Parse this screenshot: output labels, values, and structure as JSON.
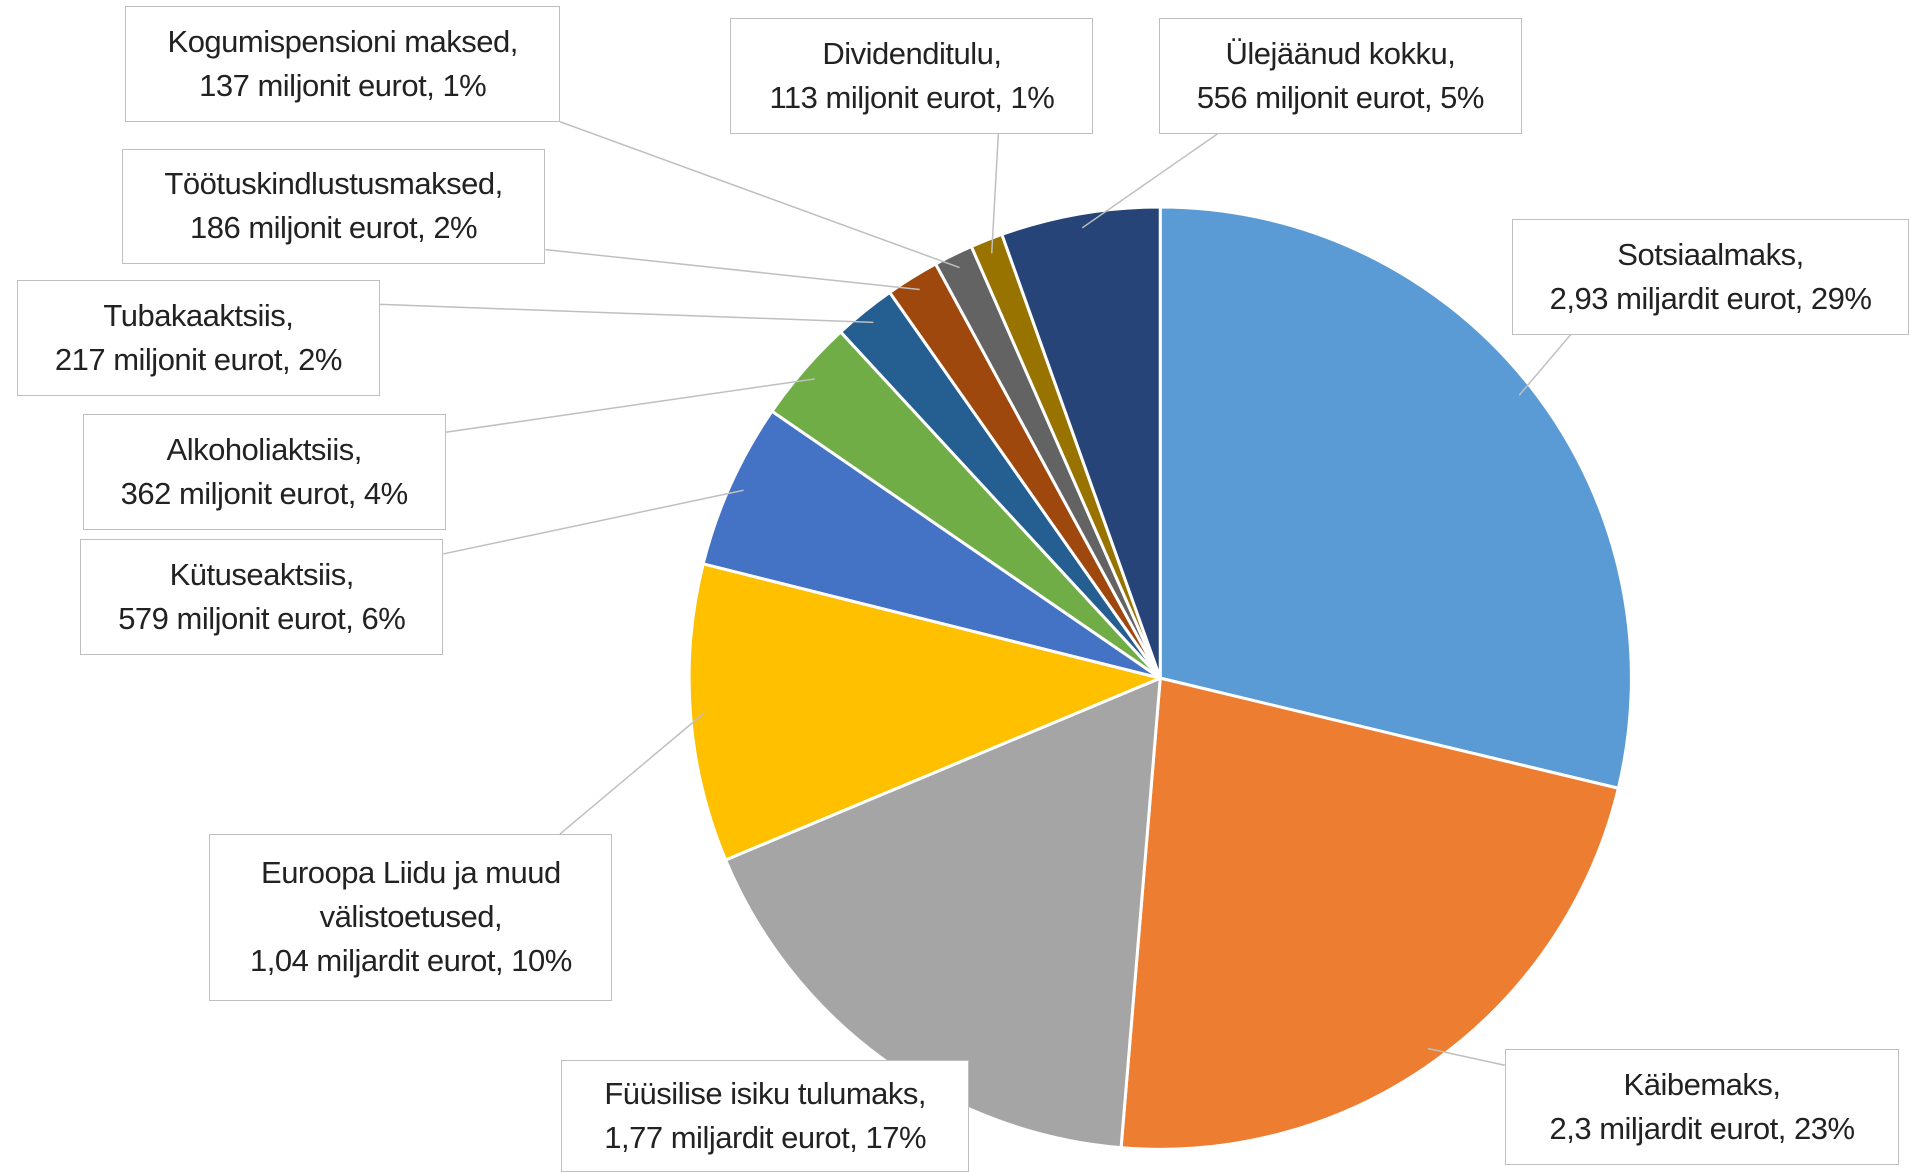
{
  "chart_data": {
    "type": "pie",
    "categories": [
      "Sotsiaalmaks,",
      "Käibemaks,",
      "Füüsilise isiku tulumaks,",
      "Euroopa Liidu ja muud välistoetused,",
      "Kütuseaktsiis,",
      "Alkoholiaktsiis,",
      "Tubakaaktsiis,",
      "Töötuskindlustusmaksed,",
      "Kogumispensioni maksed,",
      "Dividenditulu,",
      "Ülejäänud kokku,"
    ],
    "values": [
      2930,
      2300,
      1770,
      1040,
      579,
      362,
      217,
      186,
      137,
      113,
      556
    ],
    "value_labels": [
      "2,93 miljardit eurot, 29%",
      "2,3 miljardit eurot, 23%",
      "1,77 miljardit eurot, 17%",
      "1,04 miljardit eurot, 10%",
      "579 miljonit eurot, 6%",
      "362 miljonit eurot, 4%",
      "217 miljonit eurot, 2%",
      "186 miljonit eurot, 2%",
      "137 miljonit eurot, 1%",
      "113 miljonit eurot, 1%",
      "556 miljonit eurot, 5%"
    ],
    "colors": [
      "#5b9bd5",
      "#ed7d31",
      "#a5a5a5",
      "#ffc000",
      "#4472c4",
      "#70ad47",
      "#255e91",
      "#9e480e",
      "#636363",
      "#997300",
      "#264478"
    ]
  }
}
